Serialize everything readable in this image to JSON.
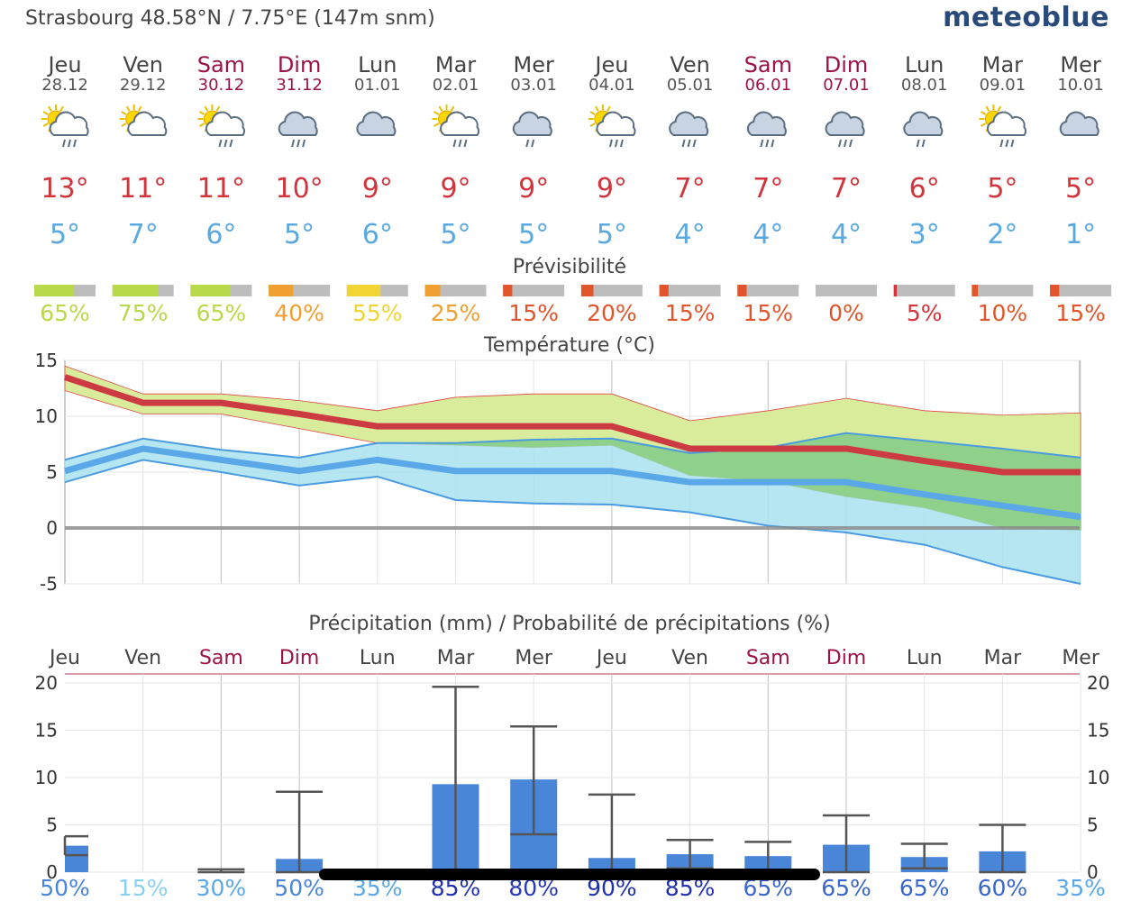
{
  "header": {
    "location": "Strasbourg  48.58°N / 7.75°E (147m snm)",
    "brand": "meteoblue"
  },
  "days": [
    {
      "name": "Jeu",
      "date": "28.12",
      "weekend": false,
      "icon": "sun-cloud-rain-icon",
      "tmax": "13°",
      "tmin": "5°",
      "pred": 65,
      "pred_label": "65%",
      "pred_color": "#b8d94a"
    },
    {
      "name": "Ven",
      "date": "29.12",
      "weekend": false,
      "icon": "sun-cloud-icon",
      "tmax": "11°",
      "tmin": "7°",
      "pred": 75,
      "pred_label": "75%",
      "pred_color": "#b8d94a"
    },
    {
      "name": "Sam",
      "date": "30.12",
      "weekend": true,
      "icon": "sun-cloud-rain-icon",
      "tmax": "11°",
      "tmin": "6°",
      "pred": 65,
      "pred_label": "65%",
      "pred_color": "#b8d94a"
    },
    {
      "name": "Dim",
      "date": "31.12",
      "weekend": true,
      "icon": "cloud-rain-icon",
      "tmax": "10°",
      "tmin": "5°",
      "pred": 40,
      "pred_label": "40%",
      "pred_color": "#f0a030"
    },
    {
      "name": "Lun",
      "date": "01.01",
      "weekend": false,
      "icon": "cloud-icon",
      "tmax": "9°",
      "tmin": "6°",
      "pred": 55,
      "pred_label": "55%",
      "pred_color": "#f2d535"
    },
    {
      "name": "Mar",
      "date": "02.01",
      "weekend": false,
      "icon": "sun-cloud-rain-icon",
      "tmax": "9°",
      "tmin": "5°",
      "pred": 25,
      "pred_label": "25%",
      "pred_color": "#f0a030"
    },
    {
      "name": "Mer",
      "date": "03.01",
      "weekend": false,
      "icon": "cloud-drizzle-icon",
      "tmax": "9°",
      "tmin": "5°",
      "pred": 15,
      "pred_label": "15%",
      "pred_color": "#e2552a"
    },
    {
      "name": "Jeu",
      "date": "04.01",
      "weekend": false,
      "icon": "sun-cloud-rain-icon",
      "tmax": "9°",
      "tmin": "5°",
      "pred": 20,
      "pred_label": "20%",
      "pred_color": "#e2552a"
    },
    {
      "name": "Ven",
      "date": "05.01",
      "weekend": false,
      "icon": "cloud-rain-icon",
      "tmax": "7°",
      "tmin": "4°",
      "pred": 15,
      "pred_label": "15%",
      "pred_color": "#e2552a"
    },
    {
      "name": "Sam",
      "date": "06.01",
      "weekend": true,
      "icon": "cloud-rain-icon",
      "tmax": "7°",
      "tmin": "4°",
      "pred": 15,
      "pred_label": "15%",
      "pred_color": "#e2552a"
    },
    {
      "name": "Dim",
      "date": "07.01",
      "weekend": true,
      "icon": "cloud-rain-icon",
      "tmax": "7°",
      "tmin": "4°",
      "pred": 0,
      "pred_label": "0%",
      "pred_color": "#e2552a"
    },
    {
      "name": "Lun",
      "date": "08.01",
      "weekend": false,
      "icon": "cloud-drizzle-icon",
      "tmax": "6°",
      "tmin": "3°",
      "pred": 5,
      "pred_label": "5%",
      "pred_color": "#d8323a"
    },
    {
      "name": "Mar",
      "date": "09.01",
      "weekend": false,
      "icon": "sun-cloud-rain-icon",
      "tmax": "5°",
      "tmin": "2°",
      "pred": 10,
      "pred_label": "10%",
      "pred_color": "#e2552a"
    },
    {
      "name": "Mer",
      "date": "10.01",
      "weekend": false,
      "icon": "cloud-icon",
      "tmax": "5°",
      "tmin": "1°",
      "pred": 15,
      "pred_label": "15%",
      "pred_color": "#e2552a"
    }
  ],
  "predictability_title": "Prévisibilité",
  "chart_data": [
    {
      "type": "line",
      "title": "Température (°C)",
      "ylim": [
        -5,
        15
      ],
      "yticks": [
        "15",
        "10",
        "5",
        "0",
        "-5"
      ],
      "ytick_values": [
        15,
        10,
        5,
        0,
        -5
      ],
      "x": [
        "28.12",
        "29.12",
        "30.12",
        "31.12",
        "01.01",
        "02.01",
        "03.01",
        "04.01",
        "05.01",
        "06.01",
        "07.01",
        "08.01",
        "09.01",
        "10.01"
      ],
      "series": [
        {
          "name": "max",
          "values": [
            13.5,
            11.2,
            11.2,
            10.2,
            9.1,
            9.1,
            9.1,
            9.1,
            7.1,
            7.1,
            7.1,
            6.0,
            5.0,
            5.0
          ]
        },
        {
          "name": "max_upper",
          "values": [
            14.5,
            12.0,
            12.0,
            11.4,
            10.5,
            11.7,
            12.0,
            12.0,
            9.6,
            10.5,
            11.6,
            10.5,
            10.1,
            10.3
          ]
        },
        {
          "name": "max_lower",
          "values": [
            12.3,
            10.2,
            10.2,
            8.9,
            7.6,
            7.4,
            7.2,
            7.4,
            4.7,
            4.2,
            2.8,
            1.8,
            0.0,
            -0.2
          ]
        },
        {
          "name": "min",
          "values": [
            5.1,
            7.1,
            6.1,
            5.1,
            6.1,
            5.1,
            5.1,
            5.1,
            4.1,
            4.1,
            4.1,
            3.0,
            2.0,
            1.0
          ]
        },
        {
          "name": "min_upper",
          "values": [
            6.1,
            8.0,
            7.0,
            6.3,
            7.6,
            7.6,
            7.9,
            8.0,
            6.7,
            7.2,
            8.5,
            7.8,
            7.1,
            6.3
          ]
        },
        {
          "name": "min_lower",
          "values": [
            4.1,
            6.1,
            5.0,
            3.8,
            4.6,
            2.5,
            2.2,
            2.1,
            1.4,
            0.2,
            -0.4,
            -1.5,
            -3.5,
            -5.0
          ]
        }
      ]
    },
    {
      "type": "bar",
      "title": "Précipitation (mm) / Probabilité de précipitations (%)",
      "ylim": [
        0,
        20
      ],
      "yticks": [
        "20",
        "15",
        "10",
        "5",
        "0"
      ],
      "ytick_values": [
        20,
        15,
        10,
        5,
        0
      ],
      "categories": [
        "Jeu",
        "Ven",
        "Sam",
        "Dim",
        "Lun",
        "Mar",
        "Mer",
        "Jeu",
        "Ven",
        "Sam",
        "Dim",
        "Lun",
        "Mar",
        "Mer"
      ],
      "weekend": [
        false,
        false,
        true,
        true,
        false,
        false,
        false,
        false,
        false,
        true,
        true,
        false,
        false,
        false
      ],
      "values": [
        2.8,
        0,
        0,
        1.4,
        0,
        9.3,
        9.8,
        1.5,
        1.9,
        1.7,
        2.9,
        1.6,
        2.2,
        0
      ],
      "range_low": [
        1.8,
        0,
        0,
        0,
        0,
        0,
        4.0,
        0,
        0.4,
        0,
        0,
        0.4,
        0,
        0
      ],
      "range_high": [
        3.8,
        0,
        0.3,
        8.5,
        0,
        19.6,
        15.4,
        8.2,
        3.4,
        3.2,
        6.0,
        3.0,
        5.0,
        0
      ],
      "probabilities": [
        "50%",
        "15%",
        "30%",
        "50%",
        "35%",
        "85%",
        "80%",
        "90%",
        "85%",
        "65%",
        "65%",
        "65%",
        "60%",
        "35%"
      ],
      "prob_colors": [
        "#4a86d8",
        "#8ad0f0",
        "#5aa8e8",
        "#4a86d8",
        "#5aa8e8",
        "#2030b0",
        "#2838b8",
        "#2030b0",
        "#2030b0",
        "#3a66cc",
        "#3a66cc",
        "#3a66cc",
        "#3a66cc",
        "#5aa8e8"
      ]
    }
  ]
}
